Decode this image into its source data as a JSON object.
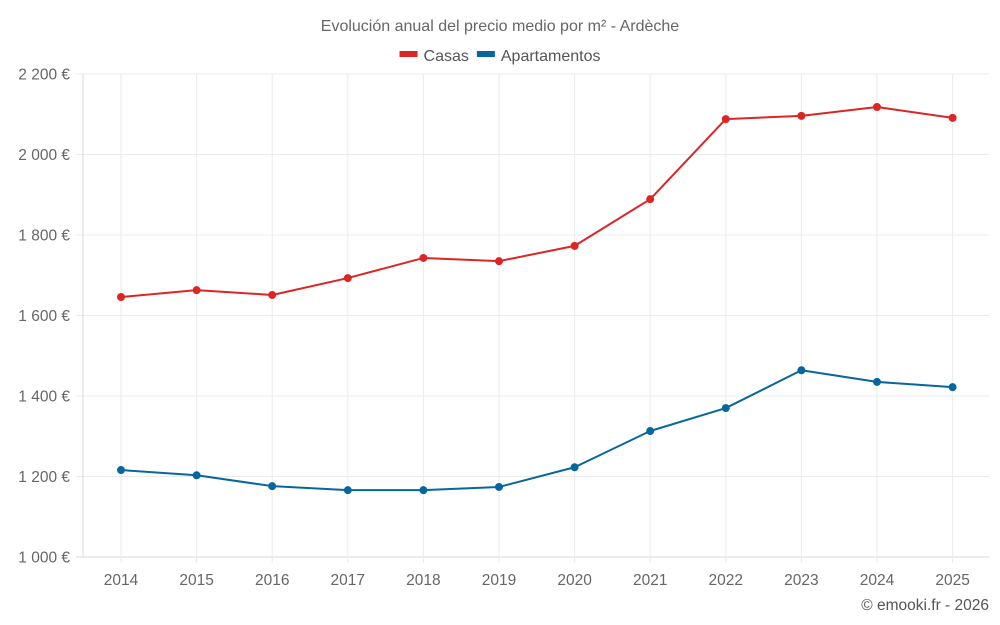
{
  "chart_data": {
    "type": "line",
    "title": "Evolución anual del precio medio por m² - Ardèche",
    "xlabel": "",
    "ylabel": "",
    "x": [
      "2014",
      "2015",
      "2016",
      "2017",
      "2018",
      "2019",
      "2020",
      "2021",
      "2022",
      "2023",
      "2024",
      "2025"
    ],
    "ylim": [
      1000,
      2200
    ],
    "yticks": [
      1000,
      1200,
      1400,
      1600,
      1800,
      2000,
      2200
    ],
    "ytick_labels": [
      "1 000 €",
      "1 200 €",
      "1 400 €",
      "1 600 €",
      "1 800 €",
      "2 000 €",
      "2 200 €"
    ],
    "grid": true,
    "legend_position": "top-center",
    "series": [
      {
        "name": "Casas",
        "color": "#dc2626",
        "values": [
          1646,
          1663,
          1651,
          1693,
          1743,
          1735,
          1773,
          1889,
          2088,
          2096,
          2118,
          2091
        ]
      },
      {
        "name": "Apartamentos",
        "color": "#06679e",
        "values": [
          1216,
          1203,
          1176,
          1166,
          1166,
          1174,
          1223,
          1313,
          1370,
          1464,
          1435,
          1422
        ]
      }
    ],
    "credit": "© emooki.fr - 2026"
  }
}
